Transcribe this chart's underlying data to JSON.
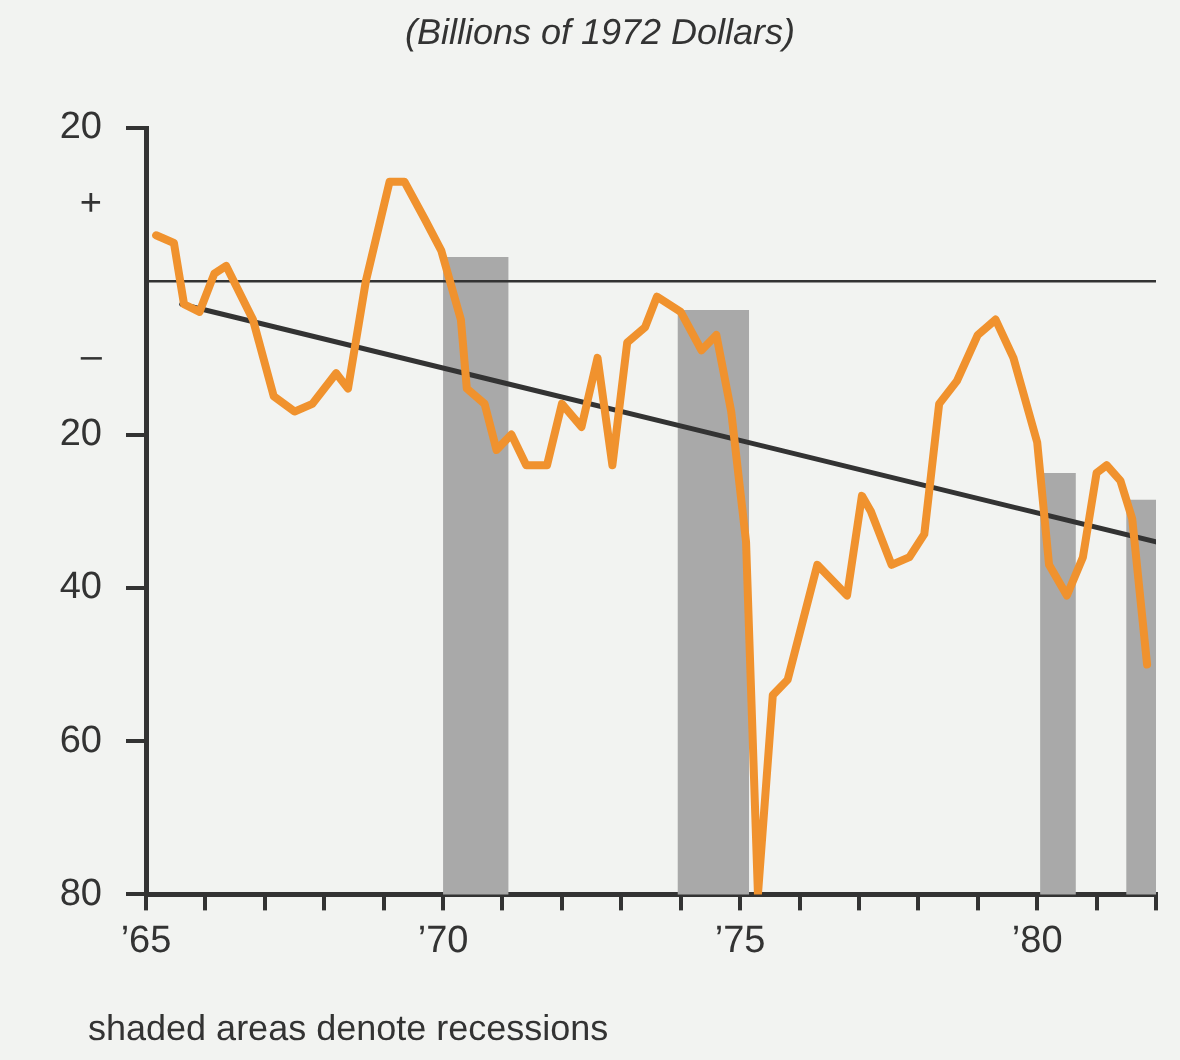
{
  "chart_data": {
    "type": "line",
    "subtitle": "(Billions of 1972 Dollars)",
    "annotations": [
      "shaded areas denote recessions"
    ],
    "series": [
      {
        "color": "#f0922e",
        "x": [
          1965.17,
          1965.47,
          1965.64,
          1965.9,
          1966.15,
          1966.35,
          1966.8,
          1967.15,
          1967.5,
          1967.8,
          1968.2,
          1968.4,
          1968.7,
          1969.1,
          1969.35,
          1969.7,
          1969.97,
          1970.3,
          1970.4,
          1970.7,
          1970.9,
          1971.15,
          1971.4,
          1971.75,
          1972.0,
          1972.33,
          1972.6,
          1972.85,
          1973.1,
          1973.4,
          1973.6,
          1974.0,
          1974.35,
          1974.6,
          1974.85,
          1975.1,
          1975.3,
          1975.55,
          1975.8,
          1976.3,
          1976.8,
          1977.05,
          1977.2,
          1977.55,
          1977.85,
          1978.1,
          1978.35,
          1978.65,
          1979.0,
          1979.3,
          1979.6,
          1980.0,
          1980.2,
          1980.5,
          1980.77,
          1981.0,
          1981.17,
          1981.4,
          1981.6,
          1981.85
        ],
        "values": [
          6,
          5,
          -3,
          -4,
          1,
          2,
          -5,
          -15,
          -17,
          -16,
          -12,
          -14,
          0,
          13,
          13,
          8,
          4,
          -5,
          -14,
          -16,
          -22,
          -20,
          -24,
          -24,
          -16,
          -19,
          -10,
          -24,
          -8,
          -6,
          -2,
          -4,
          -9,
          -7,
          -17,
          -34,
          -80,
          -54,
          -52,
          -37,
          -41,
          -28,
          -30,
          -37,
          -36,
          -33,
          -16,
          -13,
          -7,
          -5,
          -10,
          -21,
          -37,
          -41,
          -36,
          -25,
          -24,
          -26,
          -31,
          -50
        ]
      },
      {
        "color": "#333333",
        "x": [
          1965.6,
          1982
        ],
        "values": [
          -3,
          -34
        ]
      }
    ],
    "xlim": [
      1965,
      1982
    ],
    "xticks": [
      {
        "value": 1965,
        "label": "’65"
      },
      {
        "value": 1966,
        "label": null
      },
      {
        "value": 1967,
        "label": null
      },
      {
        "value": 1968,
        "label": null
      },
      {
        "value": 1969,
        "label": null
      },
      {
        "value": 1970,
        "label": "’70"
      },
      {
        "value": 1971,
        "label": null
      },
      {
        "value": 1972,
        "label": null
      },
      {
        "value": 1973,
        "label": null
      },
      {
        "value": 1974,
        "label": null
      },
      {
        "value": 1975,
        "label": "’75"
      },
      {
        "value": 1976,
        "label": null
      },
      {
        "value": 1977,
        "label": null
      },
      {
        "value": 1978,
        "label": null
      },
      {
        "value": 1979,
        "label": null
      },
      {
        "value": 1980,
        "label": "’80"
      },
      {
        "value": 1981,
        "label": null
      },
      {
        "value": 1982,
        "label": null
      }
    ],
    "ylim": [
      -80,
      20
    ],
    "yticks": [
      {
        "value": 20,
        "label": "20"
      },
      {
        "value": 10,
        "label": "+"
      },
      {
        "value": -10,
        "label": "–"
      },
      {
        "value": -20,
        "label": "20"
      },
      {
        "value": -40,
        "label": "40"
      },
      {
        "value": -60,
        "label": "60"
      },
      {
        "value": -80,
        "label": "80"
      }
    ],
    "ref_lines": [
      {
        "axis": "y",
        "value": 0,
        "color": "#333333"
      }
    ],
    "bands": [
      {
        "axis": "x",
        "from": 1970.0,
        "to": 1971.1,
        "color": "#a9a9a9"
      },
      {
        "axis": "x",
        "from": 1973.95,
        "to": 1975.15,
        "color": "#a9a9a9"
      },
      {
        "axis": "x",
        "from": 1980.05,
        "to": 1980.65,
        "color": "#a9a9a9"
      },
      {
        "axis": "x",
        "from": 1981.5,
        "to": 1982,
        "color": "#a9a9a9"
      }
    ],
    "grid": false,
    "legend": false,
    "marker": "none",
    "line_style": "solid"
  }
}
